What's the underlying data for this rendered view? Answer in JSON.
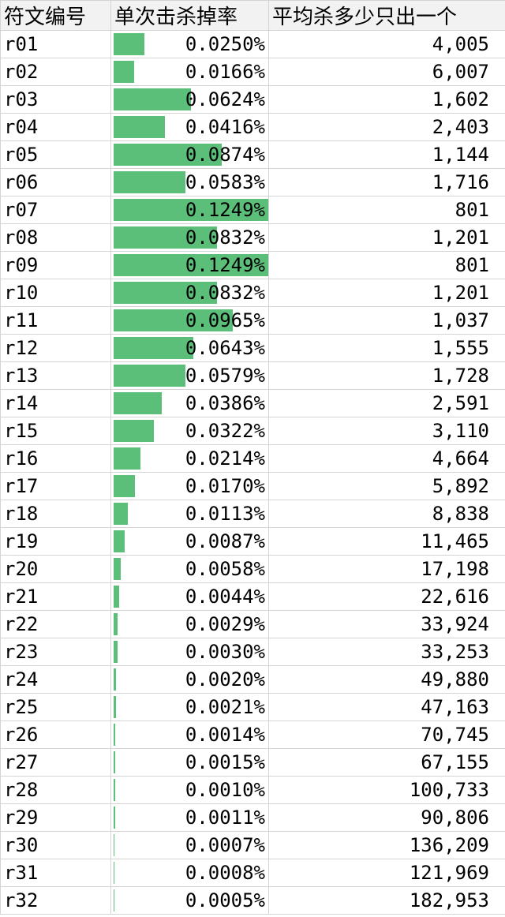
{
  "headers": [
    "符文编号",
    "单次击杀掉率",
    "平均杀多少只出一个"
  ],
  "bar_color": "#5bbf7a",
  "bar_max_rate": 0.1249,
  "rows": [
    {
      "id": "r01",
      "rate": 0.025,
      "rate_text": "0.0250%",
      "kills": "4,005"
    },
    {
      "id": "r02",
      "rate": 0.0166,
      "rate_text": "0.0166%",
      "kills": "6,007"
    },
    {
      "id": "r03",
      "rate": 0.0624,
      "rate_text": "0.0624%",
      "kills": "1,602"
    },
    {
      "id": "r04",
      "rate": 0.0416,
      "rate_text": "0.0416%",
      "kills": "2,403"
    },
    {
      "id": "r05",
      "rate": 0.0874,
      "rate_text": "0.0874%",
      "kills": "1,144"
    },
    {
      "id": "r06",
      "rate": 0.0583,
      "rate_text": "0.0583%",
      "kills": "1,716"
    },
    {
      "id": "r07",
      "rate": 0.1249,
      "rate_text": "0.1249%",
      "kills": "801"
    },
    {
      "id": "r08",
      "rate": 0.0832,
      "rate_text": "0.0832%",
      "kills": "1,201"
    },
    {
      "id": "r09",
      "rate": 0.1249,
      "rate_text": "0.1249%",
      "kills": "801"
    },
    {
      "id": "r10",
      "rate": 0.0832,
      "rate_text": "0.0832%",
      "kills": "1,201"
    },
    {
      "id": "r11",
      "rate": 0.0965,
      "rate_text": "0.0965%",
      "kills": "1,037"
    },
    {
      "id": "r12",
      "rate": 0.0643,
      "rate_text": "0.0643%",
      "kills": "1,555"
    },
    {
      "id": "r13",
      "rate": 0.0579,
      "rate_text": "0.0579%",
      "kills": "1,728"
    },
    {
      "id": "r14",
      "rate": 0.0386,
      "rate_text": "0.0386%",
      "kills": "2,591"
    },
    {
      "id": "r15",
      "rate": 0.0322,
      "rate_text": "0.0322%",
      "kills": "3,110"
    },
    {
      "id": "r16",
      "rate": 0.0214,
      "rate_text": "0.0214%",
      "kills": "4,664"
    },
    {
      "id": "r17",
      "rate": 0.017,
      "rate_text": "0.0170%",
      "kills": "5,892"
    },
    {
      "id": "r18",
      "rate": 0.0113,
      "rate_text": "0.0113%",
      "kills": "8,838"
    },
    {
      "id": "r19",
      "rate": 0.0087,
      "rate_text": "0.0087%",
      "kills": "11,465"
    },
    {
      "id": "r20",
      "rate": 0.0058,
      "rate_text": "0.0058%",
      "kills": "17,198"
    },
    {
      "id": "r21",
      "rate": 0.0044,
      "rate_text": "0.0044%",
      "kills": "22,616"
    },
    {
      "id": "r22",
      "rate": 0.0029,
      "rate_text": "0.0029%",
      "kills": "33,924"
    },
    {
      "id": "r23",
      "rate": 0.003,
      "rate_text": "0.0030%",
      "kills": "33,253"
    },
    {
      "id": "r24",
      "rate": 0.002,
      "rate_text": "0.0020%",
      "kills": "49,880"
    },
    {
      "id": "r25",
      "rate": 0.0021,
      "rate_text": "0.0021%",
      "kills": "47,163"
    },
    {
      "id": "r26",
      "rate": 0.0014,
      "rate_text": "0.0014%",
      "kills": "70,745"
    },
    {
      "id": "r27",
      "rate": 0.0015,
      "rate_text": "0.0015%",
      "kills": "67,155"
    },
    {
      "id": "r28",
      "rate": 0.001,
      "rate_text": "0.0010%",
      "kills": "100,733"
    },
    {
      "id": "r29",
      "rate": 0.0011,
      "rate_text": "0.0011%",
      "kills": "90,806"
    },
    {
      "id": "r30",
      "rate": 0.0007,
      "rate_text": "0.0007%",
      "kills": "136,209"
    },
    {
      "id": "r31",
      "rate": 0.0008,
      "rate_text": "0.0008%",
      "kills": "121,969"
    },
    {
      "id": "r32",
      "rate": 0.0005,
      "rate_text": "0.0005%",
      "kills": "182,953"
    }
  ]
}
